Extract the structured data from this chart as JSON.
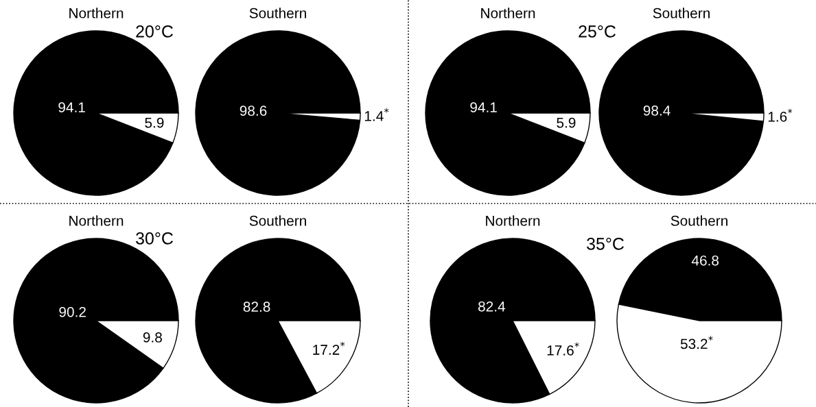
{
  "chart_data": [
    {
      "type": "pie",
      "title": "Northern",
      "annotations": [
        "20°C"
      ],
      "categories": [
        null,
        null
      ],
      "values": [
        94.1,
        5.9
      ],
      "colors": [
        "#000000",
        "#ffffff"
      ],
      "value_labels": [
        "94.1",
        "5.9"
      ]
    },
    {
      "type": "pie",
      "title": "Southern",
      "categories": [
        null,
        null
      ],
      "values": [
        98.6,
        1.4
      ],
      "colors": [
        "#000000",
        "#ffffff"
      ],
      "value_labels": [
        "98.6",
        "1.4$^{*}$"
      ]
    },
    {
      "type": "pie",
      "title": "Northern",
      "annotations": [
        "25°C"
      ],
      "categories": [
        null,
        null
      ],
      "values": [
        94.1,
        5.9
      ],
      "colors": [
        "#000000",
        "#ffffff"
      ],
      "value_labels": [
        "94.1",
        "5.9"
      ]
    },
    {
      "type": "pie",
      "title": "Southern",
      "categories": [
        null,
        null
      ],
      "values": [
        98.4,
        1.6
      ],
      "colors": [
        "#000000",
        "#ffffff"
      ],
      "value_labels": [
        "98.4",
        "1.6$^{*}$"
      ]
    },
    {
      "type": "pie",
      "title": "Northern",
      "annotations": [
        "30°C"
      ],
      "categories": [
        null,
        null
      ],
      "values": [
        90.2,
        9.8
      ],
      "colors": [
        "#000000",
        "#ffffff"
      ],
      "value_labels": [
        "90.2",
        "9.8"
      ]
    },
    {
      "type": "pie",
      "title": "Southern",
      "categories": [
        null,
        null
      ],
      "values": [
        82.8,
        17.2
      ],
      "colors": [
        "#000000",
        "#ffffff"
      ],
      "value_labels": [
        "82.8",
        "17.2$^{*}$"
      ]
    },
    {
      "type": "pie",
      "title": "Northern",
      "annotations": [
        "35°C"
      ],
      "categories": [
        null,
        null
      ],
      "values": [
        82.4,
        17.6
      ],
      "colors": [
        "#000000",
        "#ffffff"
      ],
      "value_labels": [
        "82.4",
        "17.6$^{*}$"
      ]
    },
    {
      "type": "pie",
      "title": "Southern",
      "categories": [
        null,
        null
      ],
      "values": [
        46.8,
        53.2
      ],
      "colors": [
        "#000000",
        "#ffffff"
      ],
      "value_labels": [
        "46.8",
        "53.2$^{*}$"
      ]
    }
  ]
}
